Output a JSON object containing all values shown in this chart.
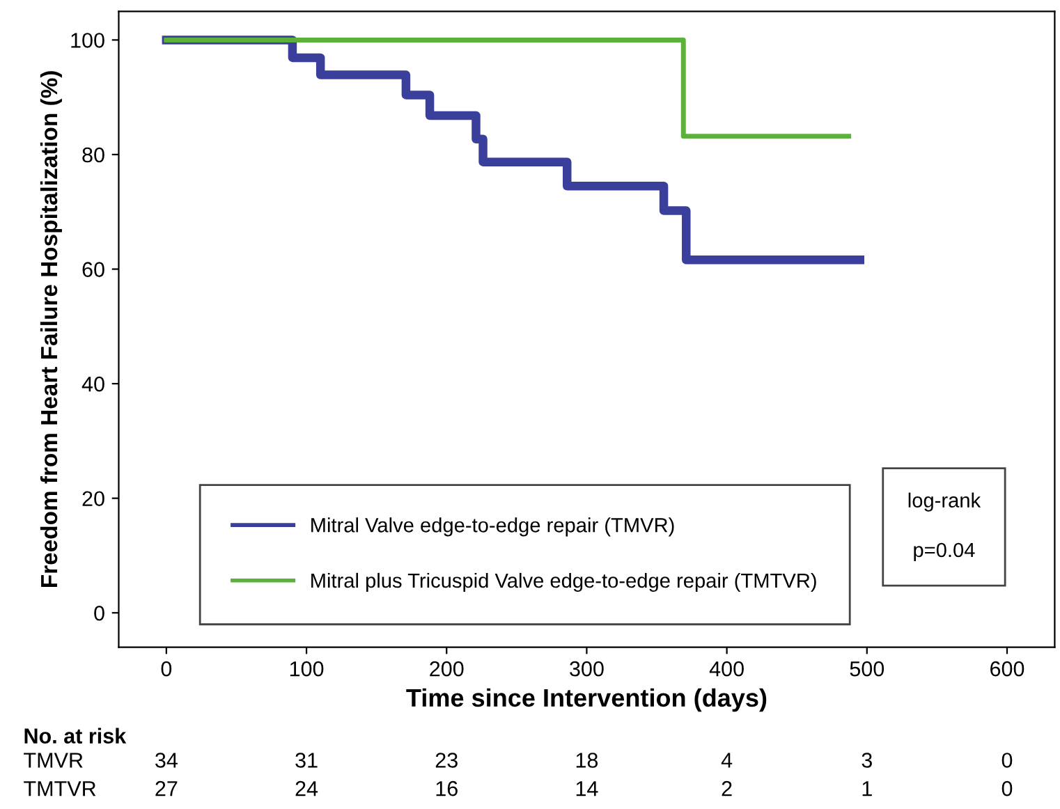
{
  "chart_data": {
    "type": "step",
    "xlabel": "Time since Intervention (days)",
    "ylabel": "Freedom from Heart Failure Hospitalization (%)",
    "series": [
      {
        "name": "Mitral Valve edge-to-edge repair (TMVR)",
        "color": "#3a3f9b",
        "x": [
          0,
          90,
          110,
          171,
          188,
          221,
          226,
          286,
          355,
          371,
          495
        ],
        "values": [
          100,
          96.9,
          93.9,
          90.4,
          86.8,
          82.7,
          78.7,
          74.5,
          70.2,
          61.6,
          61.6
        ]
      },
      {
        "name": "Mitral plus Tricuspid Valve edge-to-edge repair (TMTVR)",
        "color": "#5cb13a",
        "x": [
          0,
          369,
          487
        ],
        "values": [
          100,
          83.2,
          83.2
        ]
      }
    ],
    "xlim": [
      -34,
      634
    ],
    "xticks": [
      0,
      100,
      200,
      300,
      400,
      500,
      600
    ],
    "ylim": [
      -6,
      105
    ],
    "yticks": [
      0,
      20,
      40,
      60,
      80,
      100
    ],
    "grid": false,
    "legend": "bottom left",
    "line_style": "solid",
    "marker": "none",
    "annotations": [
      "log-rank",
      "p=0.04",
      "No. at risk",
      "TMVR",
      "34",
      "31",
      "23",
      "18",
      "4",
      "3",
      "0",
      "TMTVR",
      "27",
      "24",
      "16",
      "14",
      "2",
      "1",
      "0"
    ]
  }
}
